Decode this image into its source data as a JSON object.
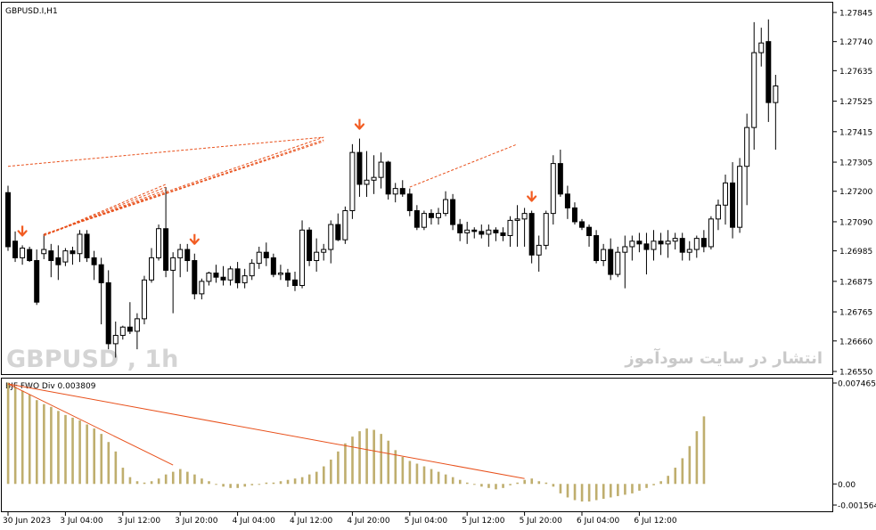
{
  "chart_data": [
    {
      "type": "candlestick",
      "title": "GBPUSD.I,H1",
      "watermark": "GBPUSD , 1h",
      "watermark_fa": "انتشار در سایت سودآموز",
      "y_ticks": [
        "1.27845",
        "1.27740",
        "1.27635",
        "1.27525",
        "1.27415",
        "1.27305",
        "1.27200",
        "1.27090",
        "1.26985",
        "1.26875",
        "1.26765",
        "1.26660",
        "1.26550"
      ],
      "ylim": [
        1.2655,
        1.27845
      ],
      "candles": [
        [
          1.27195,
          1.2722,
          1.26985,
          1.27
        ],
        [
          1.2702,
          1.27055,
          1.26945,
          1.2696
        ],
        [
          1.2696,
          1.27005,
          1.26935,
          1.26995
        ],
        [
          1.2699,
          1.27,
          1.26945,
          1.2695
        ],
        [
          1.2695,
          1.2699,
          1.2679,
          1.268
        ],
        [
          1.26975,
          1.27045,
          1.26955,
          1.2699
        ],
        [
          1.26985,
          1.2701,
          1.2689,
          1.2695
        ],
        [
          1.2696,
          1.27005,
          1.2688,
          1.26935
        ],
        [
          1.26945,
          1.26995,
          1.2693,
          1.26985
        ],
        [
          1.26985,
          1.27,
          1.26935,
          1.26975
        ],
        [
          1.26975,
          1.2706,
          1.26945,
          1.27045
        ],
        [
          1.27045,
          1.2706,
          1.26945,
          1.2696
        ],
        [
          1.2696,
          1.26985,
          1.2688,
          1.26935
        ],
        [
          1.26935,
          1.2696,
          1.2672,
          1.2687
        ],
        [
          1.2687,
          1.26915,
          1.2663,
          1.2665
        ],
        [
          1.2665,
          1.2673,
          1.266,
          1.2668
        ],
        [
          1.2668,
          1.26715,
          1.26665,
          1.2671
        ],
        [
          1.2671,
          1.268,
          1.26685,
          1.26695
        ],
        [
          1.26695,
          1.2676,
          1.2663,
          1.2674
        ],
        [
          1.2674,
          1.26895,
          1.2672,
          1.2688
        ],
        [
          1.2688,
          1.26995,
          1.2687,
          1.2696
        ],
        [
          1.2696,
          1.2708,
          1.2695,
          1.27065
        ],
        [
          1.27065,
          1.27215,
          1.2689,
          1.26915
        ],
        [
          1.26915,
          1.2698,
          1.2676,
          1.2696
        ],
        [
          1.2696,
          1.2701,
          1.2689,
          1.2699
        ],
        [
          1.2699,
          1.2701,
          1.2691,
          1.2695
        ],
        [
          1.2695,
          1.26975,
          1.2681,
          1.2683
        ],
        [
          1.2683,
          1.26885,
          1.2681,
          1.26875
        ],
        [
          1.26875,
          1.2691,
          1.2686,
          1.26905
        ],
        [
          1.26905,
          1.26935,
          1.2687,
          1.2689
        ],
        [
          1.2689,
          1.2693,
          1.2686,
          1.2688
        ],
        [
          1.2688,
          1.2693,
          1.2686,
          1.2692
        ],
        [
          1.2692,
          1.26945,
          1.2685,
          1.2687
        ],
        [
          1.2687,
          1.2692,
          1.2685,
          1.26895
        ],
        [
          1.26895,
          1.26955,
          1.2688,
          1.2694
        ],
        [
          1.2694,
          1.27,
          1.2692,
          1.2698
        ],
        [
          1.2698,
          1.27015,
          1.2693,
          1.2696
        ],
        [
          1.2696,
          1.26975,
          1.2689,
          1.269
        ],
        [
          1.269,
          1.26935,
          1.2688,
          1.26905
        ],
        [
          1.26905,
          1.2692,
          1.26855,
          1.2688
        ],
        [
          1.2688,
          1.2691,
          1.2684,
          1.2686
        ],
        [
          1.2686,
          1.27095,
          1.2685,
          1.2706
        ],
        [
          1.2706,
          1.2707,
          1.2693,
          1.2695
        ],
        [
          1.2695,
          1.2703,
          1.2691,
          1.2698
        ],
        [
          1.2698,
          1.2701,
          1.2695,
          1.2699
        ],
        [
          1.2699,
          1.27095,
          1.2694,
          1.2708
        ],
        [
          1.2708,
          1.2712,
          1.2702,
          1.27025
        ],
        [
          1.27025,
          1.27145,
          1.2701,
          1.2713
        ],
        [
          1.2713,
          1.2737,
          1.271,
          1.2734
        ],
        [
          1.2734,
          1.2739,
          1.2718,
          1.27225
        ],
        [
          1.27225,
          1.27345,
          1.2718,
          1.2724
        ],
        [
          1.2724,
          1.2733,
          1.2719,
          1.2725
        ],
        [
          1.2725,
          1.2734,
          1.2721,
          1.27305
        ],
        [
          1.27305,
          1.2731,
          1.2717,
          1.2719
        ],
        [
          1.2719,
          1.2723,
          1.2716,
          1.2721
        ],
        [
          1.2721,
          1.2724,
          1.2718,
          1.2719
        ],
        [
          1.2719,
          1.2721,
          1.2711,
          1.2713
        ],
        [
          1.2713,
          1.2715,
          1.2706,
          1.2707
        ],
        [
          1.2707,
          1.2713,
          1.2706,
          1.2712
        ],
        [
          1.2712,
          1.27135,
          1.2708,
          1.27105
        ],
        [
          1.27105,
          1.2714,
          1.2708,
          1.2712
        ],
        [
          1.2712,
          1.272,
          1.2711,
          1.2717
        ],
        [
          1.2717,
          1.2719,
          1.2706,
          1.2708
        ],
        [
          1.2708,
          1.271,
          1.2702,
          1.2705
        ],
        [
          1.2705,
          1.2709,
          1.2701,
          1.2706
        ],
        [
          1.2706,
          1.2707,
          1.2703,
          1.27055
        ],
        [
          1.27055,
          1.2708,
          1.2703,
          1.27045
        ],
        [
          1.27045,
          1.2708,
          1.27,
          1.2706
        ],
        [
          1.2706,
          1.2707,
          1.2702,
          1.2705
        ],
        [
          1.2705,
          1.2707,
          1.2702,
          1.2704
        ],
        [
          1.2704,
          1.2711,
          1.27,
          1.27095
        ],
        [
          1.27095,
          1.2715,
          1.27,
          1.271
        ],
        [
          1.271,
          1.2714,
          1.27,
          1.2712
        ],
        [
          1.2712,
          1.2713,
          1.2694,
          1.2697
        ],
        [
          1.2697,
          1.2704,
          1.2691,
          1.27005
        ],
        [
          1.27005,
          1.2713,
          1.2699,
          1.2712
        ],
        [
          1.2712,
          1.2733,
          1.2708,
          1.273
        ],
        [
          1.273,
          1.2735,
          1.2718,
          1.2719
        ],
        [
          1.2719,
          1.2722,
          1.271,
          1.2714
        ],
        [
          1.2714,
          1.2716,
          1.2708,
          1.2709
        ],
        [
          1.2709,
          1.271,
          1.2706,
          1.2707
        ],
        [
          1.2707,
          1.2708,
          1.27,
          1.2704
        ],
        [
          1.2704,
          1.2706,
          1.2694,
          1.2695
        ],
        [
          1.2695,
          1.2701,
          1.2693,
          1.2699
        ],
        [
          1.2699,
          1.2703,
          1.2688,
          1.269
        ],
        [
          1.269,
          1.27,
          1.2689,
          1.2698
        ],
        [
          1.2698,
          1.2704,
          1.2685,
          1.27
        ],
        [
          1.27,
          1.2704,
          1.2695,
          1.2702
        ],
        [
          1.2702,
          1.2705,
          1.2698,
          1.2701
        ],
        [
          1.2701,
          1.2705,
          1.269,
          1.2699
        ],
        [
          1.2699,
          1.2706,
          1.2695,
          1.2702
        ],
        [
          1.2702,
          1.2705,
          1.2697,
          1.2701
        ],
        [
          1.2701,
          1.2706,
          1.2696,
          1.2702
        ],
        [
          1.2702,
          1.2705,
          1.2699,
          1.2703
        ],
        [
          1.2703,
          1.2705,
          1.2695,
          1.2698
        ],
        [
          1.2698,
          1.2702,
          1.2695,
          1.2699
        ],
        [
          1.2699,
          1.2704,
          1.2696,
          1.2703
        ],
        [
          1.2703,
          1.2706,
          1.2698,
          1.27
        ],
        [
          1.27,
          1.2711,
          1.2699,
          1.271
        ],
        [
          1.271,
          1.2717,
          1.2706,
          1.2715
        ],
        [
          1.2715,
          1.2726,
          1.2708,
          1.2723
        ],
        [
          1.2723,
          1.27305,
          1.2703,
          1.2707
        ],
        [
          1.2707,
          1.2732,
          1.2705,
          1.2729
        ],
        [
          1.2729,
          1.2748,
          1.2715,
          1.2743
        ],
        [
          1.2743,
          1.2781,
          1.2735,
          1.277
        ],
        [
          1.277,
          1.2779,
          1.2765,
          1.27735
        ],
        [
          1.2774,
          1.2782,
          1.2745,
          1.2752
        ],
        [
          1.2752,
          1.2762,
          1.2735,
          1.2758
        ]
      ],
      "down_arrows": [
        2,
        26,
        49,
        73
      ],
      "trendlines": [
        {
          "from": [
            0,
            1.2729
          ],
          "to": [
            44,
            1.27395
          ]
        },
        {
          "from": [
            5,
            1.27045
          ],
          "to": [
            44,
            1.27395
          ]
        },
        {
          "from": [
            5,
            1.27045
          ],
          "to": [
            44,
            1.27385
          ]
        },
        {
          "from": [
            5,
            1.27045
          ],
          "to": [
            44,
            1.2738
          ]
        },
        {
          "from": [
            5,
            1.2704
          ],
          "to": [
            22,
            1.27225
          ]
        },
        {
          "from": [
            5,
            1.2704
          ],
          "to": [
            22,
            1.27215
          ]
        },
        {
          "from": [
            5,
            1.2704
          ],
          "to": [
            22,
            1.27205
          ]
        },
        {
          "from": [
            56,
            1.27215
          ],
          "to": [
            71,
            1.2737
          ]
        }
      ]
    },
    {
      "type": "bar",
      "title": "BJF FWO Div 0.003809",
      "y_ticks": [
        "0.007465",
        "0.00",
        "-0.001564"
      ],
      "ylim": [
        -0.001564,
        0.007465
      ],
      "values": [
        0.0075,
        0.0072,
        0.0069,
        0.0066,
        0.0062,
        0.0059,
        0.0057,
        0.0054,
        0.0051,
        0.0049,
        0.0047,
        0.0044,
        0.0041,
        0.0037,
        0.0031,
        0.0024,
        0.0012,
        0.0005,
        0.0002,
        0.0001,
        0.0002,
        0.0004,
        0.0007,
        0.0009,
        0.0011,
        0.0009,
        0.0007,
        0.0004,
        0.0002,
        0.0,
        -0.0002,
        -0.0003,
        -0.0003,
        -0.0002,
        -0.0001,
        0.0,
        0.0001,
        0.0001,
        0.0002,
        0.0003,
        0.0004,
        0.0005,
        0.0007,
        0.0009,
        0.0013,
        0.0018,
        0.0024,
        0.003,
        0.0035,
        0.0039,
        0.0041,
        0.004,
        0.0037,
        0.0032,
        0.0025,
        0.002,
        0.0017,
        0.0015,
        0.0013,
        0.0011,
        0.0009,
        0.0007,
        0.0005,
        0.0003,
        0.0001,
        0.0,
        -0.0002,
        -0.0003,
        -0.0004,
        -0.0003,
        -0.0001,
        0.0001,
        0.0003,
        0.0004,
        0.0002,
        0.0001,
        -0.0002,
        -0.0007,
        -0.001,
        -0.0012,
        -0.0013,
        -0.0013,
        -0.0012,
        -0.0011,
        -0.001,
        -0.0009,
        -0.0008,
        -0.0007,
        -0.0005,
        -0.0003,
        -0.0001,
        0.0002,
        0.0006,
        0.0012,
        0.0019,
        0.0028,
        0.0039,
        0.005
      ],
      "trendlines": [
        {
          "from": [
            0,
            0.0074
          ],
          "to": [
            23,
            0.0014
          ]
        },
        {
          "from": [
            0,
            0.0074
          ],
          "to": [
            72,
            0.0004
          ]
        }
      ]
    }
  ],
  "time_axis": [
    "30 Jun 2023",
    "3 Jul 04:00",
    "3 Jul 12:00",
    "3 Jul 20:00",
    "4 Jul 04:00",
    "4 Jul 12:00",
    "4 Jul 20:00",
    "5 Jul 04:00",
    "5 Jul 12:00",
    "5 Jul 20:00",
    "6 Jul 04:00",
    "6 Jul 12:00"
  ],
  "colors": {
    "trendline": "#e8501b",
    "arrow": "#f25c22",
    "histogram": "#bfae6e",
    "candle": "#000000"
  }
}
